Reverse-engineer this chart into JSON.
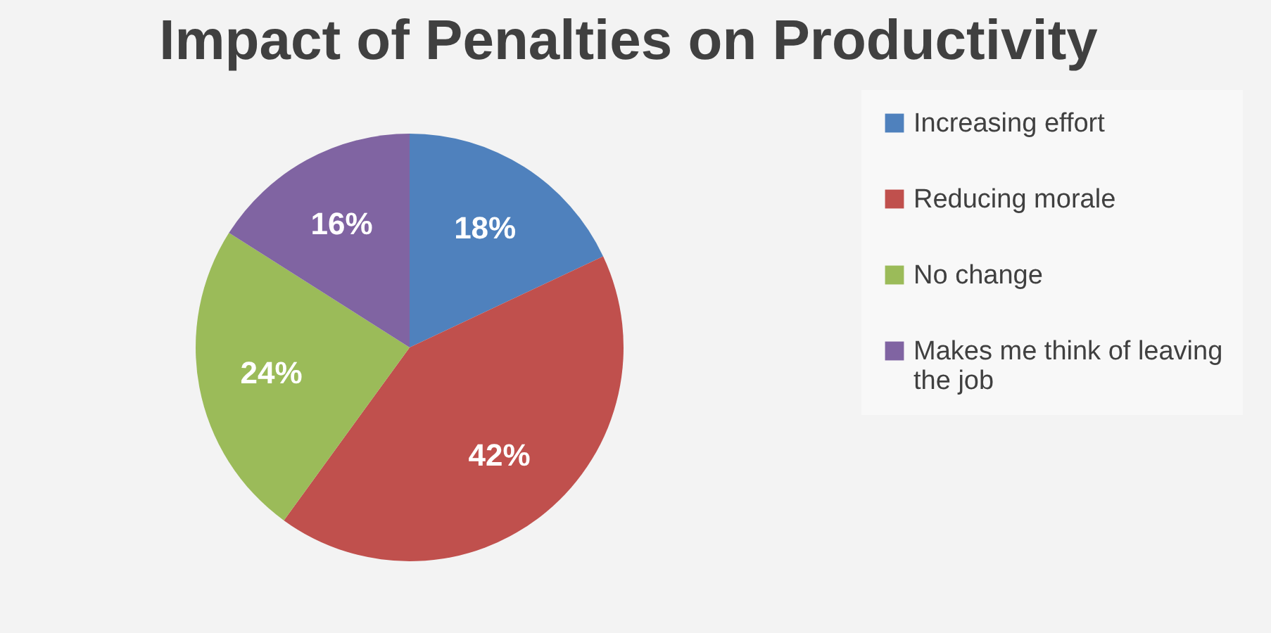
{
  "chart_data": {
    "type": "pie",
    "title": "Impact of Penalties on Productivity",
    "categories": [
      "Increasing  effort",
      "Reducing morale",
      "No change",
      "Makes me think of leaving the job"
    ],
    "values": [
      18,
      42,
      24,
      16
    ],
    "value_labels": [
      "18%",
      "42%",
      "24%",
      "16%"
    ],
    "colors": [
      "#4f81bd",
      "#c0504d",
      "#9bbb59",
      "#8064a2"
    ],
    "legend": "right"
  }
}
